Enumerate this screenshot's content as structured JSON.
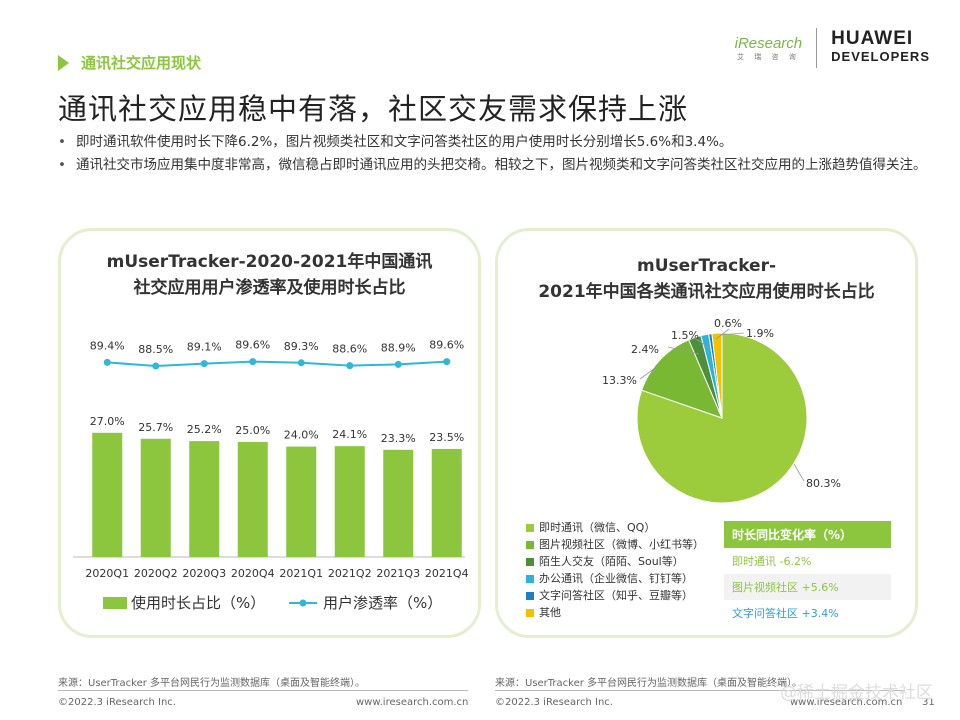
{
  "header": {
    "section_label": "通讯社交应用现状",
    "title": "通讯社交应用稳中有落，社区交友需求保持上涨",
    "bullets": [
      "即时通讯软件使用时长下降6.2%，图片视频类社区和文字问答类社区的用户使用时长分别增长5.6%和3.4%。",
      "通讯社交市场应用集中度非常高，微信稳占即时通讯应用的头把交椅。相较之下，图片视频类和文字问答类社区社交应用的上涨趋势值得关注。"
    ]
  },
  "logos": {
    "iresearch": "iResearch",
    "iresearch_sub": "艾 瑞 咨 询",
    "huawei_line1": "HUAWEI",
    "huawei_line2": "DEVELOPERS"
  },
  "left_panel": {
    "title_line1": "mUserTracker-2020-2021年中国通讯",
    "title_line2": "社交应用用户渗透率及使用时长占比",
    "legend_bar": "使用时长占比（%）",
    "legend_line": "用户渗透率（%）"
  },
  "right_panel": {
    "title_line1": "mUserTracker-",
    "title_line2": "2021年中国各类通讯社交应用使用时长占比",
    "yoy_header": "时长同比变化率（%）",
    "yoy_rows": [
      "即时通讯 -6.2%",
      "图片视频社区 +5.6%",
      "文字问答社区 +3.4%"
    ]
  },
  "chart_data": [
    {
      "type": "bar",
      "title": "mUserTracker-2020-2021年中国通讯社交应用用户渗透率及使用时长占比",
      "categories": [
        "2020Q1",
        "2020Q2",
        "2020Q3",
        "2020Q4",
        "2021Q1",
        "2021Q2",
        "2021Q3",
        "2021Q4"
      ],
      "series": [
        {
          "name": "使用时长占比（%）",
          "type": "bar",
          "values": [
            27.0,
            25.7,
            25.2,
            25.0,
            24.0,
            24.1,
            23.3,
            23.5
          ],
          "labels": [
            "27.0%",
            "25.7%",
            "25.2%",
            "25.0%",
            "24.0%",
            "24.1%",
            "23.3%",
            "23.5%"
          ],
          "color": "#8cc63f"
        },
        {
          "name": "用户渗透率（%）",
          "type": "line",
          "values": [
            89.4,
            88.5,
            89.1,
            89.6,
            89.3,
            88.6,
            88.9,
            89.6
          ],
          "labels": [
            "89.4%",
            "88.5%",
            "89.1%",
            "89.6%",
            "89.3%",
            "88.6%",
            "88.9%",
            "89.6%"
          ],
          "color": "#2fb7d6"
        }
      ]
    },
    {
      "type": "pie",
      "title": "mUserTracker-2021年中国各类通讯社交应用使用时长占比",
      "slices": [
        {
          "label": "即时通讯（微信、QQ）",
          "value": 80.3,
          "text": "80.3%",
          "color": "#9ccc3c"
        },
        {
          "label": "图片视频社区（微博、小红书等）",
          "value": 13.3,
          "text": "13.3%",
          "color": "#78b833"
        },
        {
          "label": "陌生人交友（陌陌、Soul等）",
          "value": 2.4,
          "text": "2.4%",
          "color": "#4e8f3a"
        },
        {
          "label": "办公通讯（企业微信、钉钉等）",
          "value": 1.5,
          "text": "1.5%",
          "color": "#2bb3d9"
        },
        {
          "label": "文字问答社区（知乎、豆瓣等）",
          "value": 0.6,
          "text": "0.6%",
          "color": "#1a7fc4"
        },
        {
          "label": "其他",
          "value": 1.9,
          "text": "1.9%",
          "color": "#f2c200"
        }
      ]
    }
  ],
  "footer": {
    "source_left": "来源：UserTracker 多平台网民行为监测数据库（桌面及智能终端）。",
    "source_right": "来源：UserTracker 多平台网民行为监测数据库（桌面及智能终端）。",
    "copyright_left": "©2022.3 iResearch Inc.",
    "url_left": "www.iresearch.com.cn",
    "copyright_right": "©2022.3 iResearch Inc.",
    "url_right": "www.iresearch.com.cn",
    "page_number": "31",
    "watermark": "@稀土掘金技术社区"
  }
}
